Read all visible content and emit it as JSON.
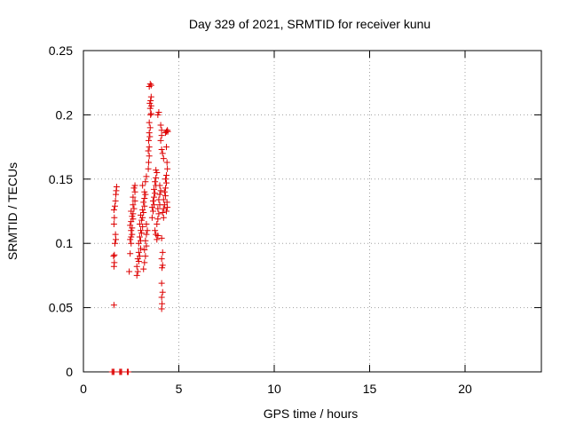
{
  "chart_data": {
    "type": "scatter",
    "title": "Day 329 of 2021, SRMTID for receiver kunu",
    "xlabel": "GPS time / hours",
    "ylabel": "SRMTID / TECUs",
    "xlim": [
      0,
      24
    ],
    "ylim": [
      0,
      0.25
    ],
    "x_ticks": [
      0,
      5,
      10,
      15,
      20
    ],
    "x_tick_labels": [
      "0",
      "5",
      "10",
      "15",
      "20"
    ],
    "y_ticks": [
      0,
      0.05,
      0.1,
      0.15,
      0.2,
      0.25
    ],
    "y_tick_labels": [
      "0",
      "0.05",
      "0.1",
      "0.15",
      "0.2",
      "0.25"
    ],
    "grid": true,
    "marker": "+",
    "series": [
      {
        "color": "#dd0000",
        "points": [
          [
            1.5,
            0
          ],
          [
            1.55,
            0
          ],
          [
            1.6,
            0
          ],
          [
            1.9,
            0
          ],
          [
            1.95,
            0
          ],
          [
            2.0,
            0
          ],
          [
            2.3,
            0
          ],
          [
            2.35,
            0
          ],
          [
            1.6,
            0.052
          ],
          [
            1.6,
            0.082
          ],
          [
            1.62,
            0.085
          ],
          [
            1.58,
            0.09
          ],
          [
            1.62,
            0.091
          ],
          [
            1.65,
            0.1
          ],
          [
            1.7,
            0.103
          ],
          [
            1.68,
            0.107
          ],
          [
            1.6,
            0.115
          ],
          [
            1.62,
            0.12
          ],
          [
            1.6,
            0.126
          ],
          [
            1.65,
            0.129
          ],
          [
            1.68,
            0.133
          ],
          [
            1.7,
            0.138
          ],
          [
            1.72,
            0.141
          ],
          [
            1.74,
            0.144
          ],
          [
            2.4,
            0.078
          ],
          [
            2.45,
            0.092
          ],
          [
            2.5,
            0.1
          ],
          [
            2.45,
            0.103
          ],
          [
            2.5,
            0.105
          ],
          [
            2.55,
            0.107
          ],
          [
            2.5,
            0.11
          ],
          [
            2.55,
            0.112
          ],
          [
            2.45,
            0.114
          ],
          [
            2.5,
            0.117
          ],
          [
            2.6,
            0.119
          ],
          [
            2.55,
            0.121
          ],
          [
            2.6,
            0.123
          ],
          [
            2.5,
            0.125
          ],
          [
            2.65,
            0.127
          ],
          [
            2.6,
            0.13
          ],
          [
            2.7,
            0.133
          ],
          [
            2.6,
            0.136
          ],
          [
            2.7,
            0.14
          ],
          [
            2.65,
            0.143
          ],
          [
            2.7,
            0.145
          ],
          [
            2.8,
            0.075
          ],
          [
            2.85,
            0.078
          ],
          [
            2.8,
            0.082
          ],
          [
            2.9,
            0.086
          ],
          [
            2.85,
            0.088
          ],
          [
            2.95,
            0.09
          ],
          [
            2.9,
            0.093
          ],
          [
            3.0,
            0.096
          ],
          [
            2.9,
            0.1
          ],
          [
            3.0,
            0.102
          ],
          [
            2.95,
            0.105
          ],
          [
            3.05,
            0.108
          ],
          [
            3.0,
            0.11
          ],
          [
            3.1,
            0.113
          ],
          [
            2.95,
            0.115
          ],
          [
            3.05,
            0.118
          ],
          [
            3.1,
            0.12
          ],
          [
            3.0,
            0.122
          ],
          [
            3.15,
            0.124
          ],
          [
            3.1,
            0.126
          ],
          [
            3.2,
            0.129
          ],
          [
            3.15,
            0.132
          ],
          [
            3.2,
            0.135
          ],
          [
            3.25,
            0.138
          ],
          [
            3.2,
            0.14
          ],
          [
            3.1,
            0.145
          ],
          [
            3.25,
            0.148
          ],
          [
            3.3,
            0.152
          ],
          [
            3.15,
            0.08
          ],
          [
            3.2,
            0.085
          ],
          [
            3.25,
            0.09
          ],
          [
            3.2,
            0.095
          ],
          [
            3.3,
            0.098
          ],
          [
            3.25,
            0.102
          ],
          [
            3.3,
            0.107
          ],
          [
            3.35,
            0.11
          ],
          [
            3.3,
            0.115
          ],
          [
            3.4,
            0.158
          ],
          [
            3.42,
            0.163
          ],
          [
            3.45,
            0.168
          ],
          [
            3.4,
            0.172
          ],
          [
            3.45,
            0.175
          ],
          [
            3.42,
            0.18
          ],
          [
            3.48,
            0.183
          ],
          [
            3.45,
            0.186
          ],
          [
            3.5,
            0.19
          ],
          [
            3.45,
            0.194
          ],
          [
            3.52,
            0.2
          ],
          [
            3.55,
            0.201
          ],
          [
            3.5,
            0.205
          ],
          [
            3.55,
            0.207
          ],
          [
            3.48,
            0.209
          ],
          [
            3.52,
            0.211
          ],
          [
            3.55,
            0.214
          ],
          [
            3.45,
            0.222
          ],
          [
            3.5,
            0.224
          ],
          [
            3.55,
            0.223
          ],
          [
            3.6,
            0.12
          ],
          [
            3.65,
            0.125
          ],
          [
            3.6,
            0.128
          ],
          [
            3.7,
            0.13
          ],
          [
            3.65,
            0.133
          ],
          [
            3.7,
            0.136
          ],
          [
            3.75,
            0.139
          ],
          [
            3.7,
            0.142
          ],
          [
            3.8,
            0.145
          ],
          [
            3.75,
            0.148
          ],
          [
            3.8,
            0.151
          ],
          [
            3.85,
            0.155
          ],
          [
            3.8,
            0.157
          ],
          [
            3.75,
            0.11
          ],
          [
            3.8,
            0.107
          ],
          [
            3.85,
            0.103
          ],
          [
            3.9,
            0.106
          ],
          [
            3.85,
            0.115
          ],
          [
            3.9,
            0.119
          ],
          [
            3.95,
            0.123
          ],
          [
            3.9,
            0.127
          ],
          [
            4.0,
            0.13
          ],
          [
            3.95,
            0.134
          ],
          [
            4.0,
            0.138
          ],
          [
            4.05,
            0.141
          ],
          [
            4.0,
            0.145
          ],
          [
            3.9,
            0.2
          ],
          [
            3.95,
            0.202
          ],
          [
            4.1,
            0.049
          ],
          [
            4.12,
            0.053
          ],
          [
            4.1,
            0.058
          ],
          [
            4.15,
            0.062
          ],
          [
            4.1,
            0.069
          ],
          [
            4.12,
            0.081
          ],
          [
            4.15,
            0.083
          ],
          [
            4.1,
            0.088
          ],
          [
            4.15,
            0.093
          ],
          [
            4.1,
            0.104
          ],
          [
            4.2,
            0.12
          ],
          [
            4.15,
            0.124
          ],
          [
            4.2,
            0.127
          ],
          [
            4.25,
            0.13
          ],
          [
            4.2,
            0.134
          ],
          [
            4.3,
            0.137
          ],
          [
            4.25,
            0.14
          ],
          [
            4.3,
            0.143
          ],
          [
            4.35,
            0.147
          ],
          [
            4.3,
            0.15
          ],
          [
            4.35,
            0.153
          ],
          [
            4.05,
            0.18
          ],
          [
            4.1,
            0.184
          ],
          [
            4.1,
            0.188
          ],
          [
            4.05,
            0.192
          ],
          [
            4.1,
            0.173
          ],
          [
            4.15,
            0.17
          ],
          [
            4.2,
            0.166
          ],
          [
            4.35,
            0.125
          ],
          [
            4.4,
            0.128
          ],
          [
            4.38,
            0.132
          ],
          [
            4.4,
            0.158
          ],
          [
            4.38,
            0.163
          ],
          [
            4.35,
            0.175
          ],
          [
            4.3,
            0.186
          ],
          [
            4.35,
            0.187
          ],
          [
            4.4,
            0.188
          ],
          [
            4.42,
            0.187
          ]
        ]
      }
    ]
  }
}
